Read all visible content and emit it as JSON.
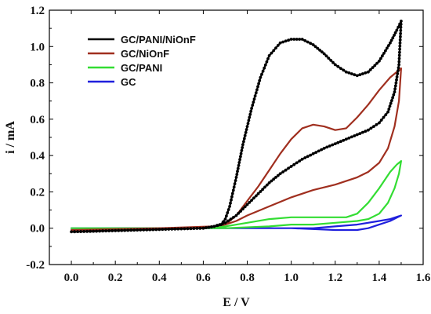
{
  "chart_data": {
    "type": "line",
    "title": "",
    "xlabel": "E / V",
    "ylabel": "i / mA",
    "xlim": [
      -0.1,
      1.6
    ],
    "ylim": [
      -0.2,
      1.2
    ],
    "xticks": [
      "0.0",
      "0.2",
      "0.4",
      "0.6",
      "0.8",
      "1.0",
      "1.2",
      "1.4",
      "1.6"
    ],
    "yticks": [
      "-0.2",
      "0.0",
      "0.2",
      "0.4",
      "0.6",
      "0.8",
      "1.0",
      "1.2"
    ],
    "legend_position": "top-left",
    "grid": false,
    "series": [
      {
        "name": "GC/PANI/NiOnF",
        "color": "#000000",
        "markers": true,
        "points": [
          [
            0.0,
            -0.02
          ],
          [
            0.3,
            -0.01
          ],
          [
            0.6,
            0.0
          ],
          [
            0.65,
            0.01
          ],
          [
            0.68,
            0.02
          ],
          [
            0.7,
            0.05
          ],
          [
            0.72,
            0.12
          ],
          [
            0.75,
            0.28
          ],
          [
            0.78,
            0.46
          ],
          [
            0.82,
            0.66
          ],
          [
            0.86,
            0.83
          ],
          [
            0.9,
            0.95
          ],
          [
            0.95,
            1.02
          ],
          [
            1.0,
            1.04
          ],
          [
            1.05,
            1.04
          ],
          [
            1.1,
            1.01
          ],
          [
            1.15,
            0.96
          ],
          [
            1.2,
            0.9
          ],
          [
            1.25,
            0.86
          ],
          [
            1.3,
            0.84
          ],
          [
            1.35,
            0.86
          ],
          [
            1.4,
            0.92
          ],
          [
            1.45,
            1.02
          ],
          [
            1.48,
            1.09
          ],
          [
            1.5,
            1.14
          ],
          [
            1.49,
            0.9
          ],
          [
            1.47,
            0.75
          ],
          [
            1.44,
            0.64
          ],
          [
            1.4,
            0.58
          ],
          [
            1.35,
            0.54
          ],
          [
            1.25,
            0.49
          ],
          [
            1.15,
            0.44
          ],
          [
            1.05,
            0.38
          ],
          [
            1.0,
            0.34
          ],
          [
            0.95,
            0.3
          ],
          [
            0.9,
            0.25
          ],
          [
            0.85,
            0.19
          ],
          [
            0.8,
            0.13
          ],
          [
            0.75,
            0.07
          ],
          [
            0.7,
            0.03
          ],
          [
            0.65,
            0.01
          ],
          [
            0.6,
            0.0
          ],
          [
            0.3,
            -0.01
          ],
          [
            0.0,
            -0.02
          ]
        ]
      },
      {
        "name": "GC/NiOnF",
        "color": "#a02f1f",
        "markers": false,
        "points": [
          [
            0.0,
            -0.01
          ],
          [
            0.4,
            0.0
          ],
          [
            0.65,
            0.01
          ],
          [
            0.7,
            0.02
          ],
          [
            0.75,
            0.07
          ],
          [
            0.8,
            0.15
          ],
          [
            0.85,
            0.23
          ],
          [
            0.9,
            0.32
          ],
          [
            0.95,
            0.41
          ],
          [
            1.0,
            0.49
          ],
          [
            1.05,
            0.55
          ],
          [
            1.1,
            0.57
          ],
          [
            1.15,
            0.56
          ],
          [
            1.2,
            0.54
          ],
          [
            1.25,
            0.55
          ],
          [
            1.3,
            0.61
          ],
          [
            1.35,
            0.68
          ],
          [
            1.4,
            0.76
          ],
          [
            1.45,
            0.83
          ],
          [
            1.5,
            0.88
          ],
          [
            1.49,
            0.7
          ],
          [
            1.47,
            0.56
          ],
          [
            1.44,
            0.44
          ],
          [
            1.4,
            0.36
          ],
          [
            1.35,
            0.31
          ],
          [
            1.3,
            0.28
          ],
          [
            1.2,
            0.24
          ],
          [
            1.1,
            0.21
          ],
          [
            1.0,
            0.17
          ],
          [
            0.9,
            0.12
          ],
          [
            0.8,
            0.07
          ],
          [
            0.75,
            0.04
          ],
          [
            0.7,
            0.02
          ],
          [
            0.65,
            0.01
          ],
          [
            0.4,
            0.0
          ],
          [
            0.0,
            -0.01
          ]
        ]
      },
      {
        "name": "GC/PANI",
        "color": "#33dd33",
        "markers": false,
        "points": [
          [
            0.0,
            0.0
          ],
          [
            0.6,
            0.0
          ],
          [
            0.7,
            0.01
          ],
          [
            0.8,
            0.03
          ],
          [
            0.9,
            0.05
          ],
          [
            1.0,
            0.06
          ],
          [
            1.1,
            0.06
          ],
          [
            1.2,
            0.06
          ],
          [
            1.25,
            0.06
          ],
          [
            1.3,
            0.08
          ],
          [
            1.35,
            0.14
          ],
          [
            1.4,
            0.22
          ],
          [
            1.45,
            0.31
          ],
          [
            1.48,
            0.35
          ],
          [
            1.5,
            0.37
          ],
          [
            1.49,
            0.3
          ],
          [
            1.47,
            0.22
          ],
          [
            1.44,
            0.14
          ],
          [
            1.4,
            0.08
          ],
          [
            1.35,
            0.05
          ],
          [
            1.3,
            0.04
          ],
          [
            1.2,
            0.03
          ],
          [
            1.1,
            0.02
          ],
          [
            1.0,
            0.02
          ],
          [
            0.9,
            0.01
          ],
          [
            0.7,
            0.0
          ],
          [
            0.0,
            0.0
          ]
        ]
      },
      {
        "name": "GC",
        "color": "#1f1fdd",
        "markers": false,
        "points": [
          [
            0.0,
            0.0
          ],
          [
            0.6,
            0.0
          ],
          [
            0.9,
            0.0
          ],
          [
            1.1,
            0.0
          ],
          [
            1.2,
            0.01
          ],
          [
            1.3,
            0.02
          ],
          [
            1.4,
            0.04
          ],
          [
            1.45,
            0.05
          ],
          [
            1.5,
            0.07
          ],
          [
            1.45,
            0.04
          ],
          [
            1.4,
            0.02
          ],
          [
            1.35,
            0.0
          ],
          [
            1.3,
            -0.01
          ],
          [
            1.2,
            -0.01
          ],
          [
            1.0,
            0.0
          ],
          [
            0.6,
            0.0
          ],
          [
            0.0,
            0.0
          ]
        ]
      }
    ]
  }
}
